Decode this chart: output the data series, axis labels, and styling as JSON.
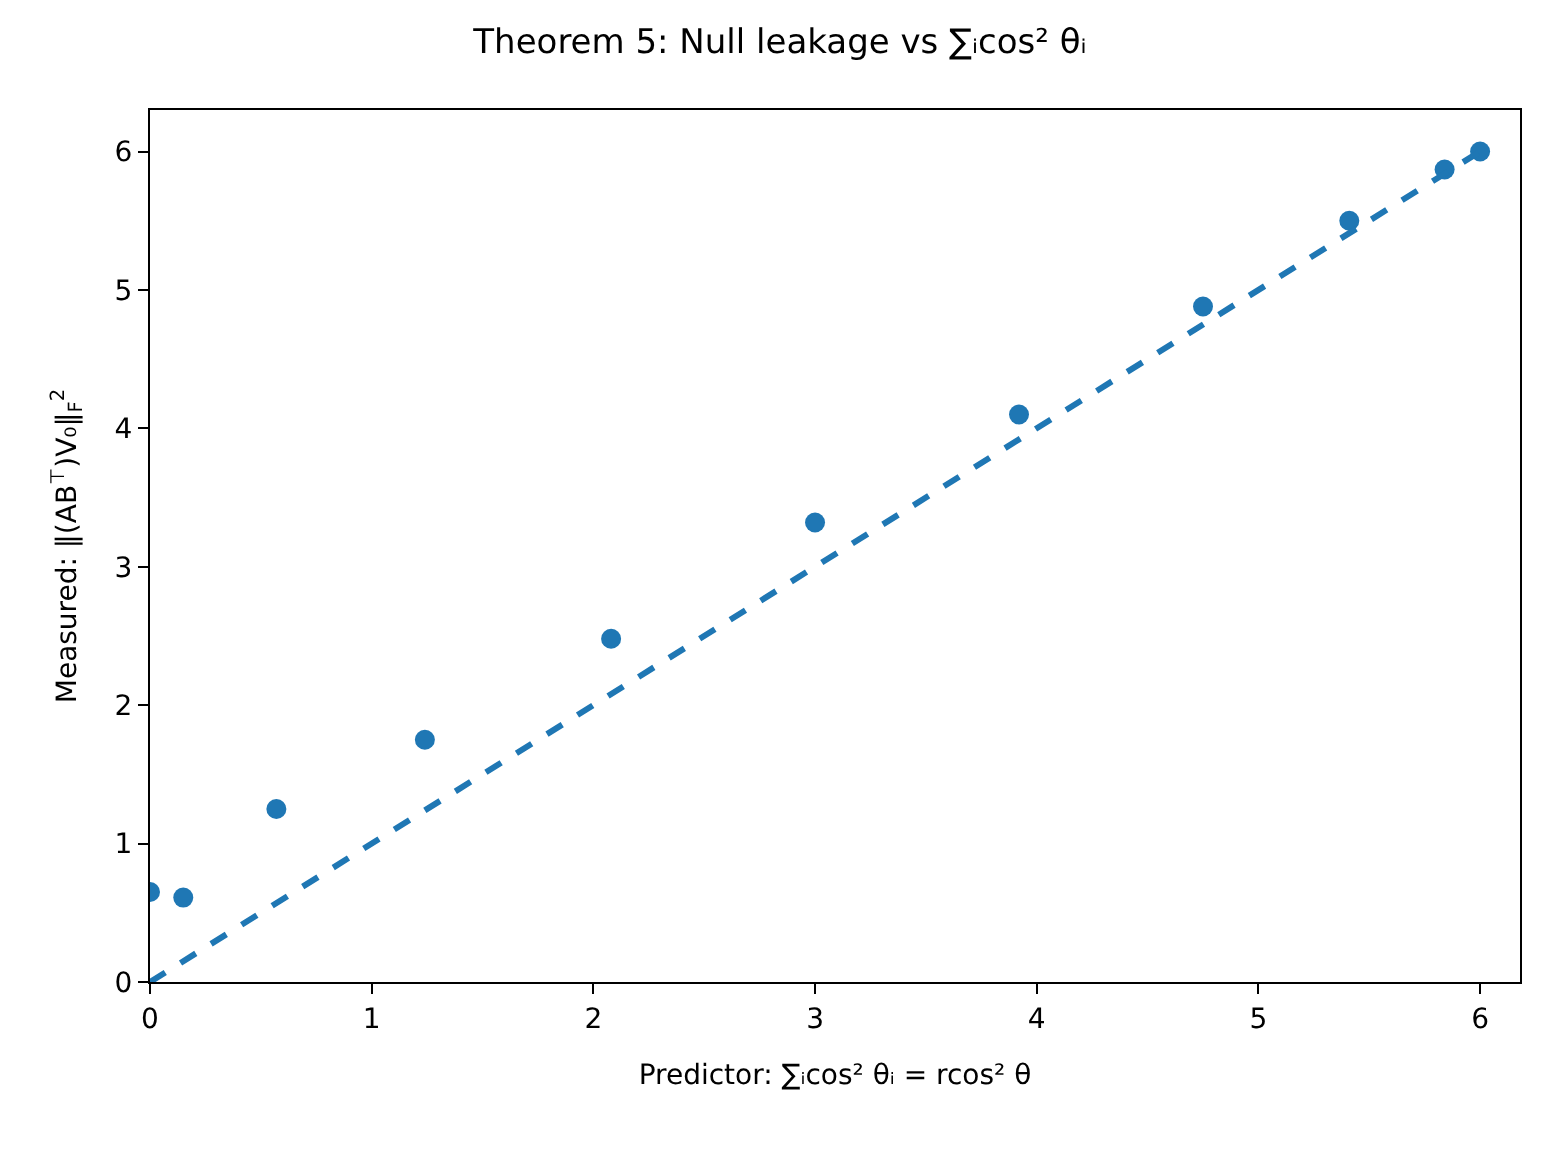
{
  "chart_data": {
    "type": "scatter",
    "title": "Theorem 5: Null leakage vs ∑ᵢcos² θᵢ",
    "xlabel": "Predictor: ∑ᵢcos² θᵢ = rcos² θ",
    "ylabel": "Measured: ‖(AB$^{⊤}$)V₀‖$_{F}$$^{2}$",
    "series": [
      {
        "color": "#1f77b4",
        "marker": "circle",
        "x": [
          0,
          0.15,
          0.57,
          1.24,
          2.08,
          3.0,
          3.92,
          4.75,
          5.41,
          5.84,
          6.0
        ],
        "values": [
          0.65,
          0.61,
          1.25,
          1.75,
          2.48,
          3.32,
          4.1,
          4.88,
          5.5,
          5.87,
          6.0
        ]
      },
      {
        "type": "line",
        "color": "#1f77b4",
        "line_style": "dashed",
        "marker": "none",
        "x": [
          0,
          6
        ],
        "values": [
          0,
          6
        ]
      }
    ],
    "xlim": [
      0,
      6.18
    ],
    "ylim": [
      0,
      6.3
    ],
    "xticks": [
      0,
      1,
      2,
      3,
      4,
      5,
      6
    ],
    "yticks": [
      0,
      1,
      2,
      3,
      4,
      5,
      6
    ],
    "legend": false
  }
}
